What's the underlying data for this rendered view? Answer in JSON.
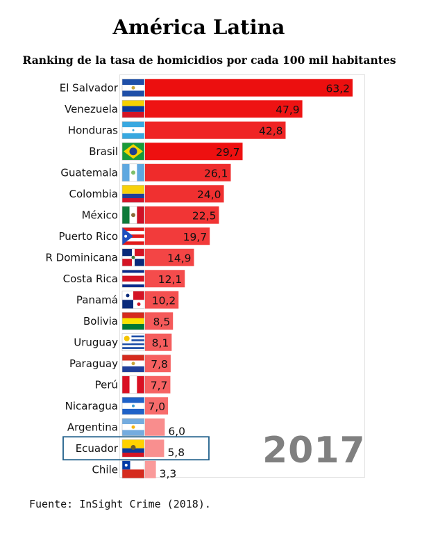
{
  "header": {
    "title": "América Latina",
    "subtitle": "Ranking de la tasa de homicidios por cada 100 mil habitantes"
  },
  "year_label": "2017",
  "source": "Fuente: InSight Crime (2018).",
  "highlight": "Ecuador",
  "chart_data": {
    "type": "bar",
    "orientation": "horizontal",
    "title": "América Latina",
    "subtitle": "Ranking de la tasa de homicidios por cada 100 mil habitantes",
    "xlabel": "",
    "ylabel": "",
    "xlim": [
      0,
      70
    ],
    "grid": false,
    "categories": [
      "El Salvador",
      "Venezuela",
      "Honduras",
      "Brasil",
      "Guatemala",
      "Colombia",
      "México",
      "Puerto Rico",
      "R Dominicana",
      "Costa Rica",
      "Panamá",
      "Bolivia",
      "Uruguay",
      "Paraguay",
      "Perú",
      "Nicaragua",
      "Argentina",
      "Ecuador",
      "Chile"
    ],
    "values": [
      63.2,
      47.9,
      42.8,
      29.7,
      26.1,
      24.0,
      22.5,
      19.7,
      14.9,
      12.1,
      10.2,
      8.5,
      8.1,
      7.8,
      7.7,
      7.0,
      6.0,
      5.8,
      3.3
    ],
    "value_labels": [
      "63,2",
      "47,9",
      "42,8",
      "29,7",
      "26,1",
      "24,0",
      "22,5",
      "19,7",
      "14,9",
      "12,1",
      "10,2",
      "8,5",
      "8,1",
      "7,8",
      "7,7",
      "7,0",
      "6,0",
      "5,8",
      "3,3"
    ],
    "bar_colors": [
      "#ec0f0f",
      "#ee1313",
      "#ef2424",
      "#ee1010",
      "#ef2b2b",
      "#f03030",
      "#f13535",
      "#f23b3b",
      "#f34545",
      "#f44c4c",
      "#f45050",
      "#f55a5a",
      "#f55d5d",
      "#f66060",
      "#f66262",
      "#f76c6c",
      "#f98d8d",
      "#f98f8f",
      "#fa9a9a"
    ],
    "flags": [
      "el-salvador-flag-icon",
      "venezuela-flag-icon",
      "honduras-flag-icon",
      "brasil-flag-icon",
      "guatemala-flag-icon",
      "colombia-flag-icon",
      "mexico-flag-icon",
      "puerto-rico-flag-icon",
      "r-dominicana-flag-icon",
      "costa-rica-flag-icon",
      "panama-flag-icon",
      "bolivia-flag-icon",
      "uruguay-flag-icon",
      "paraguay-flag-icon",
      "peru-flag-icon",
      "nicaragua-flag-icon",
      "argentina-flag-icon",
      "ecuador-flag-icon",
      "chile-flag-icon"
    ]
  }
}
